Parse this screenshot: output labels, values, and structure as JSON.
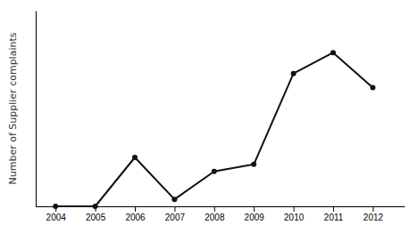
{
  "chart_data": {
    "type": "line",
    "x": [
      2004,
      2005,
      2006,
      2007,
      2008,
      2009,
      2010,
      2011,
      2012
    ],
    "values": [
      0,
      0,
      7,
      1,
      5,
      6,
      19,
      22,
      17
    ],
    "ylabel": "Number of Supplier complaints",
    "xlim": [
      2003.5,
      2012.8
    ],
    "ylim": [
      0,
      28
    ],
    "xticks": [
      2004,
      2005,
      2006,
      2007,
      2008,
      2009,
      2010,
      2011,
      2012
    ],
    "color": "#111111",
    "marker": "circle",
    "grid": false,
    "tick_labels": "x"
  }
}
